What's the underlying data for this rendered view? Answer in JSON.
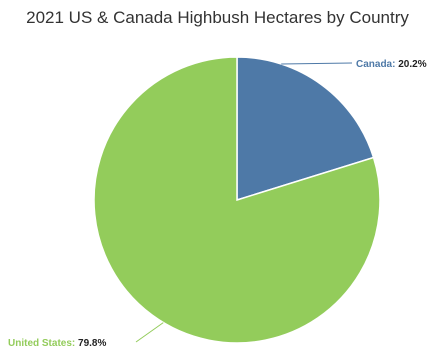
{
  "chart_data": {
    "type": "pie",
    "title": "2021 US & Canada Highbush Hectares by Country",
    "slices": [
      {
        "label": "Canada",
        "value": 20.2,
        "display": "20.2%",
        "color": "#4e79a7"
      },
      {
        "label": "United States",
        "value": 79.8,
        "display": "79.8%",
        "color": "#93cc5b"
      }
    ],
    "legend": "none",
    "label_style": "callout"
  }
}
